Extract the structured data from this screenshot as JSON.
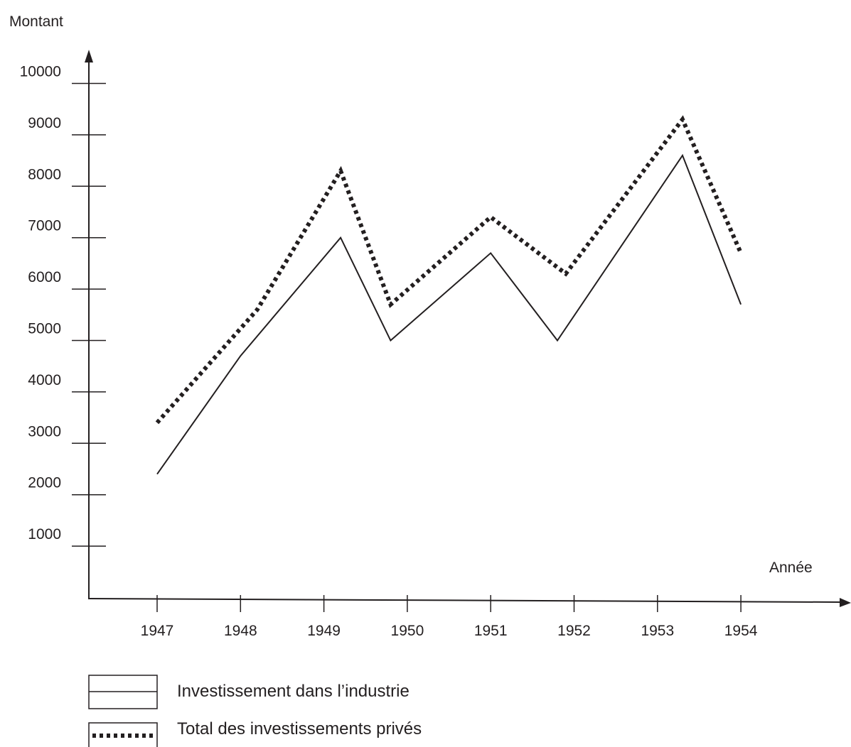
{
  "chart_data": {
    "type": "line",
    "ylabel": "Montant",
    "xlabel": "Année",
    "y_ticks": [
      1000,
      2000,
      3000,
      4000,
      5000,
      6000,
      7000,
      8000,
      9000,
      10000
    ],
    "x_ticks": [
      "1947",
      "1948",
      "1949",
      "1950",
      "1951",
      "1952",
      "1953",
      "1954"
    ],
    "series": [
      {
        "name": "Investissement dans l’industrie",
        "style": "solid",
        "color": "#231f20",
        "points": [
          {
            "x": 1947.0,
            "y": 2400
          },
          {
            "x": 1948.0,
            "y": 4700
          },
          {
            "x": 1949.2,
            "y": 7000
          },
          {
            "x": 1949.8,
            "y": 5000
          },
          {
            "x": 1951.0,
            "y": 6700
          },
          {
            "x": 1951.8,
            "y": 5000
          },
          {
            "x": 1953.3,
            "y": 8600
          },
          {
            "x": 1954.0,
            "y": 5700
          }
        ]
      },
      {
        "name": "Total des investissements privés",
        "style": "dotted",
        "color": "#231f20",
        "points": [
          {
            "x": 1947.0,
            "y": 3400
          },
          {
            "x": 1948.2,
            "y": 5600
          },
          {
            "x": 1949.2,
            "y": 8300
          },
          {
            "x": 1949.8,
            "y": 5700
          },
          {
            "x": 1951.0,
            "y": 7400
          },
          {
            "x": 1951.9,
            "y": 6300
          },
          {
            "x": 1953.3,
            "y": 9300
          },
          {
            "x": 1954.0,
            "y": 6700
          }
        ]
      }
    ],
    "grid": false,
    "legend_position": "bottom-left"
  }
}
